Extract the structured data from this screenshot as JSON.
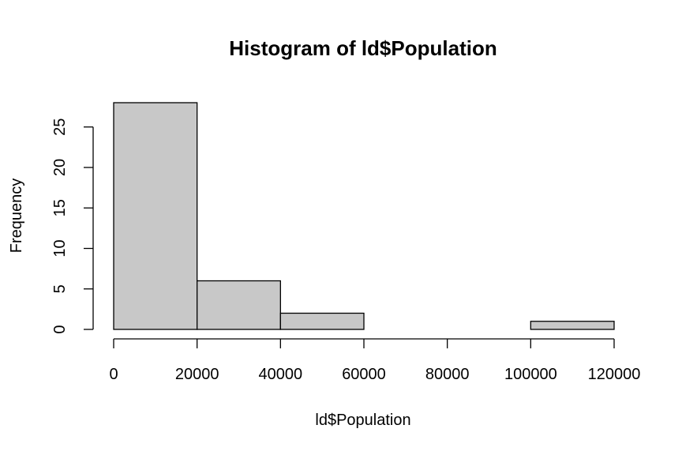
{
  "chart_data": {
    "type": "bar",
    "title": "Histogram of ld$Population",
    "xlabel": "ld$Population",
    "ylabel": "Frequency",
    "bins": [
      {
        "start": 0,
        "end": 20000,
        "count": 28
      },
      {
        "start": 20000,
        "end": 40000,
        "count": 6
      },
      {
        "start": 40000,
        "end": 60000,
        "count": 2
      },
      {
        "start": 60000,
        "end": 80000,
        "count": 0
      },
      {
        "start": 80000,
        "end": 100000,
        "count": 0
      },
      {
        "start": 100000,
        "end": 120000,
        "count": 1
      }
    ],
    "xlim": [
      0,
      120000
    ],
    "ylim": [
      0,
      28
    ],
    "x_ticks": [
      "0",
      "20000",
      "40000",
      "60000",
      "80000",
      "100000",
      "120000"
    ],
    "y_ticks": [
      "0",
      "5",
      "10",
      "15",
      "20",
      "25"
    ],
    "grid": false,
    "bar_color": "#c8c8c8"
  }
}
